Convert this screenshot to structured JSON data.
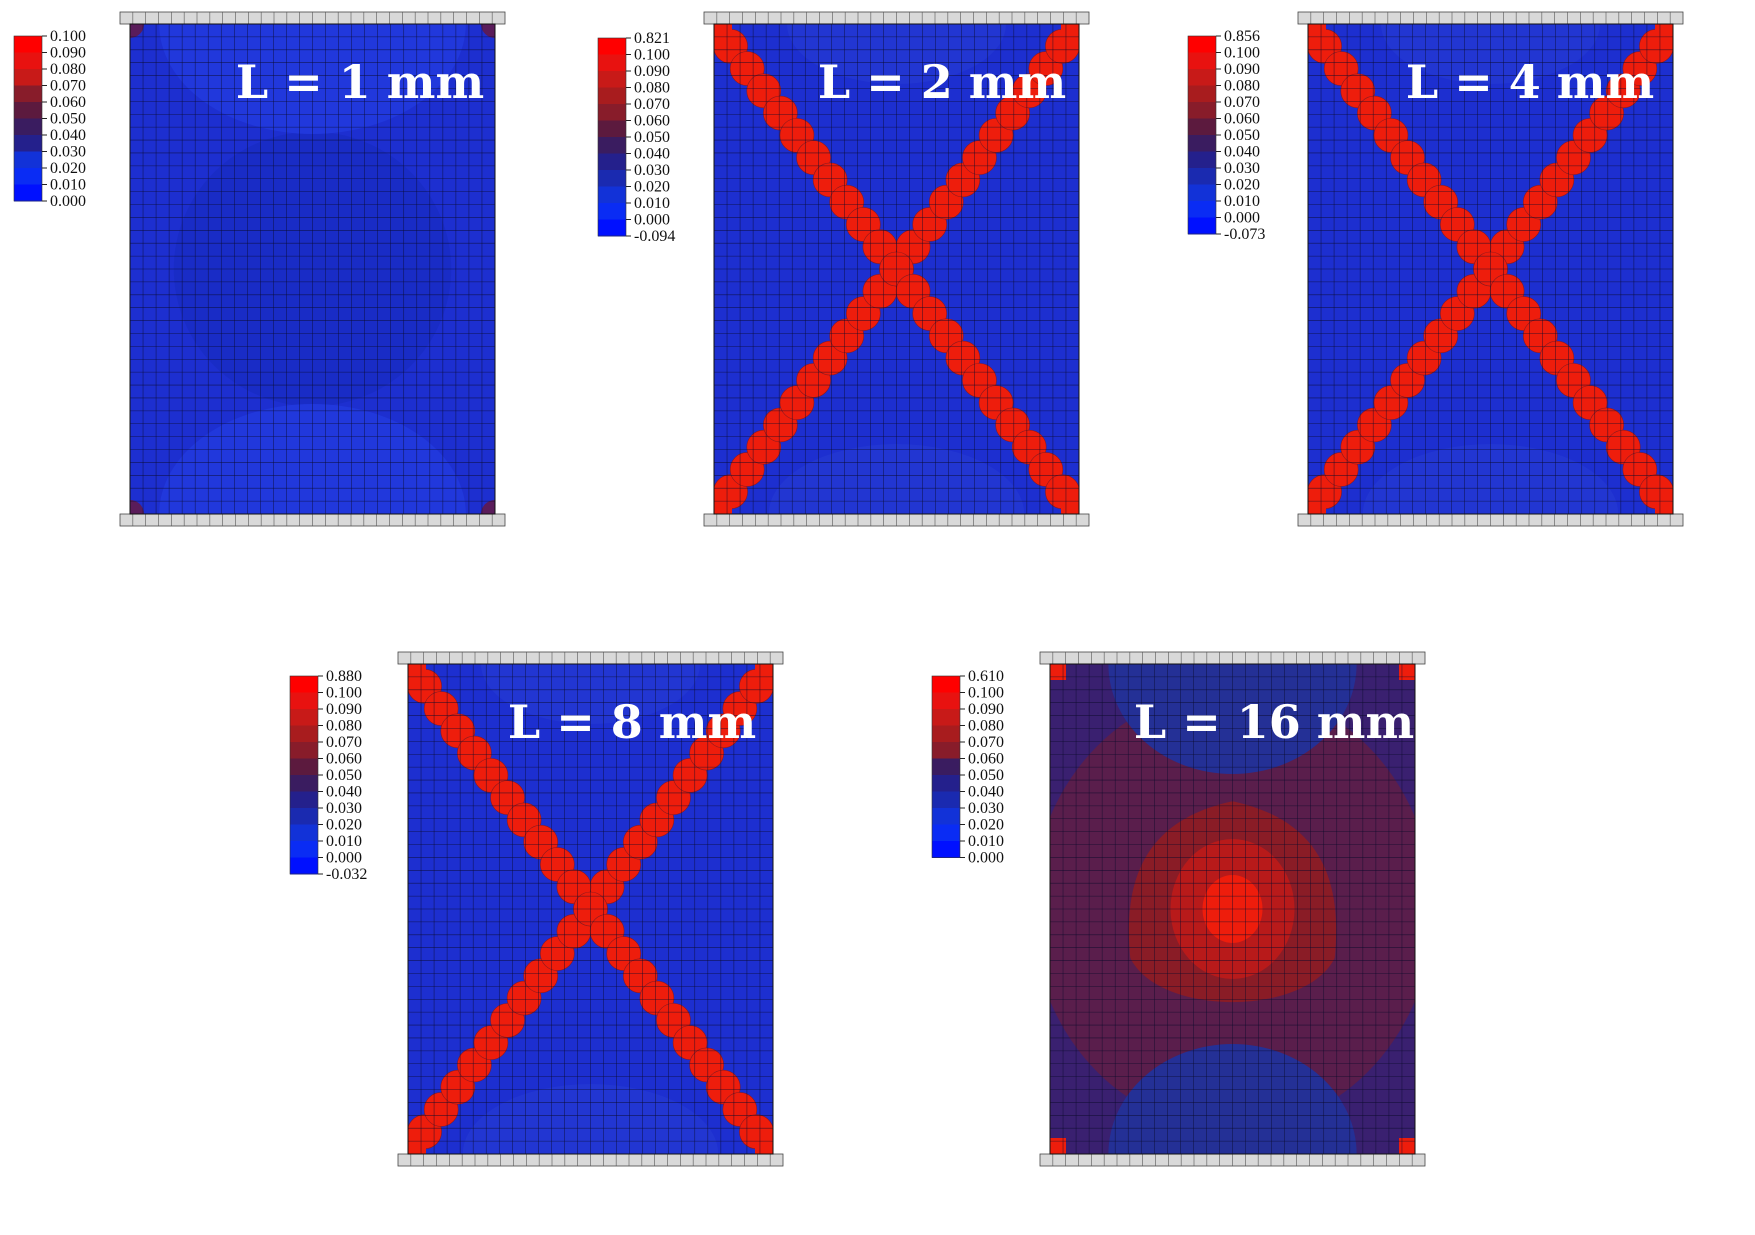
{
  "panels": [
    {
      "title": "L = 1 mm",
      "legend_labels": [
        "0.100",
        "0.090",
        "0.080",
        "0.070",
        "0.060",
        "0.050",
        "0.040",
        "0.030",
        "0.020",
        "0.010",
        "0.000"
      ],
      "pattern": "none"
    },
    {
      "title": "L = 2 mm",
      "legend_labels": [
        "0.821",
        "0.100",
        "0.090",
        "0.080",
        "0.070",
        "0.060",
        "0.050",
        "0.040",
        "0.030",
        "0.020",
        "0.010",
        "0.000",
        "-0.094"
      ],
      "pattern": "x-band"
    },
    {
      "title": "L = 4 mm",
      "legend_labels": [
        "0.856",
        "0.100",
        "0.090",
        "0.080",
        "0.070",
        "0.060",
        "0.050",
        "0.040",
        "0.030",
        "0.020",
        "0.010",
        "0.000",
        "-0.073"
      ],
      "pattern": "x-band"
    },
    {
      "title": "L = 8 mm",
      "legend_labels": [
        "0.880",
        "0.100",
        "0.090",
        "0.080",
        "0.070",
        "0.060",
        "0.050",
        "0.040",
        "0.030",
        "0.020",
        "0.010",
        "0.000",
        "-0.032"
      ],
      "pattern": "x-band"
    },
    {
      "title": "L = 16 mm",
      "legend_labels": [
        "0.610",
        "0.100",
        "0.090",
        "0.080",
        "0.070",
        "0.060",
        "0.050",
        "0.040",
        "0.030",
        "0.020",
        "0.010",
        "0.000"
      ],
      "pattern": "diffuse"
    }
  ],
  "colors": {
    "specimen": "#1d2fd0",
    "band": "#ee1d0c",
    "mesh": "#0a0a2a",
    "plate": "#d9d9d9",
    "legend_scale": [
      "#ff0000",
      "#e81210",
      "#c81a18",
      "#a81c1e",
      "#881c2a",
      "#5c1a3e",
      "#3a1c60",
      "#24208c",
      "#1a2ab0",
      "#1232d8",
      "#0a2cf4",
      "#0010ff"
    ]
  }
}
